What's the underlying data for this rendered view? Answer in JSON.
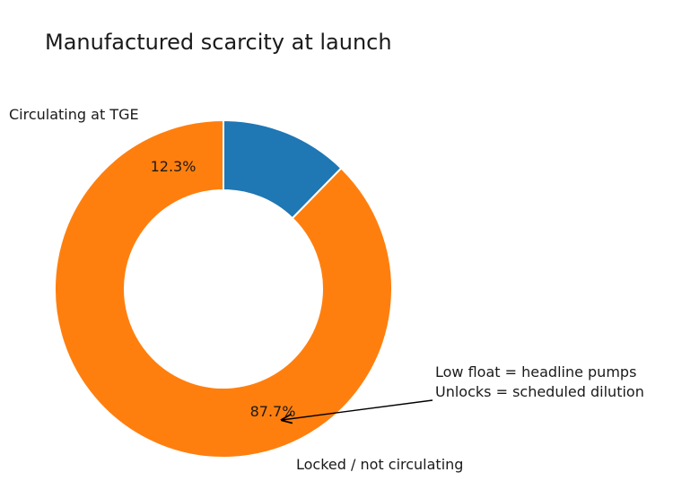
{
  "chart_data": {
    "type": "pie",
    "title": "Manufactured scarcity at launch",
    "donut": true,
    "slices": [
      {
        "label": "Circulating at TGE",
        "value": 12.3,
        "pct_label": "12.3%",
        "color": "#1f77b4"
      },
      {
        "label": "Locked / not circulating",
        "value": 87.7,
        "pct_label": "87.7%",
        "color": "#ff7f0e"
      }
    ],
    "annotation": {
      "lines": [
        "Low float = headline pumps",
        "Unlocks = scheduled dilution"
      ]
    }
  }
}
